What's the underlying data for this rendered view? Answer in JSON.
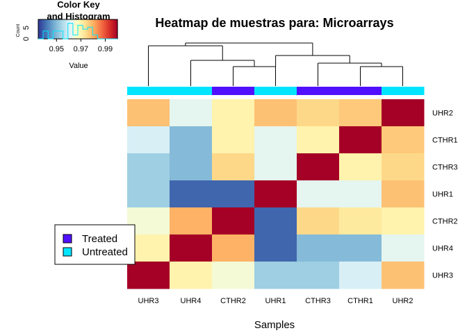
{
  "chart_data": {
    "type": "heatmap",
    "title": "Heatmap de muestras para: Microarrays",
    "xlabel": "Samples",
    "ylabel": "",
    "columns": [
      "UHR3",
      "UHR4",
      "CTHR2",
      "UHR1",
      "CTHR3",
      "CTHR1",
      "UHR2"
    ],
    "rows": [
      "UHR2",
      "CTHR1",
      "CTHR3",
      "UHR1",
      "CTHR2",
      "UHR4",
      "UHR3"
    ],
    "values": [
      [
        0.978,
        0.962,
        0.97,
        0.978,
        0.975,
        0.977,
        1.0
      ],
      [
        0.96,
        0.95,
        0.97,
        0.962,
        0.97,
        1.0,
        0.977
      ],
      [
        0.953,
        0.95,
        0.975,
        0.962,
        1.0,
        0.97,
        0.975
      ],
      [
        0.953,
        0.94,
        0.94,
        1.0,
        0.962,
        0.962,
        0.978
      ],
      [
        0.965,
        0.98,
        1.0,
        0.94,
        0.975,
        0.972,
        0.97
      ],
      [
        0.97,
        1.0,
        0.98,
        0.94,
        0.95,
        0.95,
        0.962
      ],
      [
        1.0,
        0.97,
        0.965,
        0.953,
        0.953,
        0.96,
        0.978
      ]
    ],
    "column_groups": [
      "Untreated",
      "Untreated",
      "Treated",
      "Untreated",
      "Treated",
      "Treated",
      "Untreated"
    ],
    "group_colors": {
      "Treated": "#5010ff",
      "Untreated": "#00e5ff"
    },
    "legend": {
      "position": "left",
      "entries": [
        {
          "label": "Treated",
          "color": "#5010ff"
        },
        {
          "label": "Untreated",
          "color": "#00e5ff"
        }
      ]
    },
    "color_key": {
      "title_line1": "Color Key",
      "title_line2": "and Histogram",
      "y_axis_label": "Count",
      "y_ticks": [
        "0",
        "5"
      ],
      "x_axis_label": "Value",
      "x_ticks": [
        0.95,
        0.97,
        0.99
      ],
      "x_tick_labels": [
        "0.95",
        "0.97",
        "0.99"
      ],
      "range": [
        0.935,
        1.0
      ],
      "palette": [
        "#313695",
        "#4575b4",
        "#74add1",
        "#abd9e9",
        "#e0f3f8",
        "#ffffbf",
        "#fee090",
        "#fdae61",
        "#f46d43",
        "#d73027",
        "#a50026"
      ]
    },
    "grid": false
  }
}
